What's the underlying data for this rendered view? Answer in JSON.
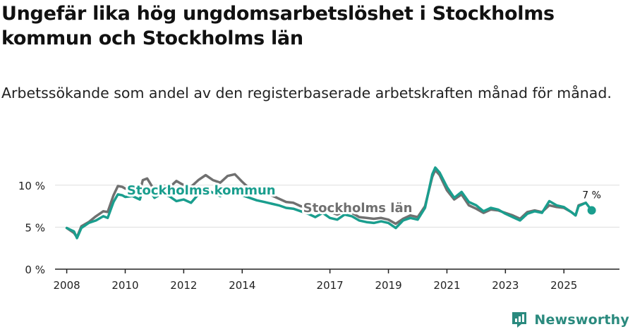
{
  "title": "Ungefär lika hög ungdomsarbetslöshet i Stockholms kommun och Stockholms län",
  "subtitle": "Arbetssökande som andel av den registerbaserade arbetskraften månad för månad.",
  "brand": "Newsworthy",
  "colors": {
    "kommun": "#1a9e8e",
    "lan": "#707070",
    "axis": "#222222",
    "grid": "#dddddd",
    "brand": "#2a8a7e"
  },
  "chart_data": {
    "type": "line",
    "title": "Ungefär lika hög ungdomsarbetslöshet i Stockholms kommun och Stockholms län",
    "xlabel": "",
    "ylabel": "",
    "ylim": [
      0,
      12.5
    ],
    "xlim": [
      2007.6,
      2026.9
    ],
    "yticks": [
      0,
      5,
      10
    ],
    "ytick_labels": [
      "0 %",
      "5 %",
      "10 %"
    ],
    "xticks": [
      2008,
      2010,
      2012,
      2014,
      2017,
      2019,
      2021,
      2023,
      2025
    ],
    "xtick_labels": [
      "2008",
      "2010",
      "2012",
      "2014",
      "2017",
      "2019",
      "2021",
      "2023",
      "2025"
    ],
    "grid": true,
    "end_label": "7 %",
    "series": [
      {
        "name": "Stockholms län",
        "x": [
          2008.0,
          2008.25,
          2008.35,
          2008.5,
          2008.75,
          2009.0,
          2009.25,
          2009.4,
          2009.6,
          2009.75,
          2009.9,
          2010.0,
          2010.25,
          2010.5,
          2010.6,
          2010.75,
          2011.0,
          2011.25,
          2011.5,
          2011.75,
          2012.0,
          2012.25,
          2012.5,
          2012.75,
          2013.0,
          2013.25,
          2013.5,
          2013.75,
          2014.0,
          2014.25,
          2014.5,
          2014.75,
          2015.0,
          2015.25,
          2015.5,
          2015.75,
          2016.0,
          2016.25,
          2016.5,
          2016.75,
          2017.0,
          2017.25,
          2017.5,
          2017.75,
          2018.0,
          2018.25,
          2018.5,
          2018.75,
          2019.0,
          2019.25,
          2019.5,
          2019.75,
          2020.0,
          2020.25,
          2020.5,
          2020.6,
          2020.75,
          2021.0,
          2021.25,
          2021.5,
          2021.75,
          2022.0,
          2022.25,
          2022.5,
          2022.75,
          2023.0,
          2023.25,
          2023.5,
          2023.75,
          2024.0,
          2024.25,
          2024.5,
          2024.75,
          2025.0,
          2025.25,
          2025.4,
          2025.5,
          2025.75
        ],
        "values": [
          4.9,
          4.3,
          3.8,
          5.1,
          5.6,
          6.3,
          6.9,
          6.8,
          8.8,
          9.9,
          9.8,
          9.6,
          9.7,
          9.2,
          10.6,
          10.8,
          9.4,
          10.0,
          9.7,
          10.5,
          10.0,
          9.8,
          10.6,
          11.2,
          10.6,
          10.3,
          11.1,
          11.3,
          10.4,
          9.6,
          9.4,
          9.0,
          8.8,
          8.4,
          8.0,
          7.9,
          7.5,
          7.4,
          7.0,
          7.3,
          6.8,
          6.5,
          6.9,
          6.7,
          6.2,
          6.1,
          6.0,
          6.1,
          5.9,
          5.4,
          6.0,
          6.4,
          6.2,
          7.5,
          11.0,
          11.8,
          11.2,
          9.4,
          8.3,
          8.9,
          7.6,
          7.2,
          6.7,
          7.1,
          7.0,
          6.7,
          6.4,
          6.0,
          6.8,
          7.0,
          6.8,
          7.6,
          7.4,
          7.3,
          6.8,
          6.4,
          7.6,
          7.9
        ]
      },
      {
        "name": "Stockholms kommun",
        "x": [
          2008.0,
          2008.25,
          2008.35,
          2008.5,
          2008.75,
          2009.0,
          2009.25,
          2009.4,
          2009.6,
          2009.75,
          2009.9,
          2010.0,
          2010.25,
          2010.5,
          2010.6,
          2010.75,
          2011.0,
          2011.25,
          2011.5,
          2011.75,
          2012.0,
          2012.25,
          2012.5,
          2012.75,
          2013.0,
          2013.25,
          2013.5,
          2013.75,
          2014.0,
          2014.25,
          2014.5,
          2014.75,
          2015.0,
          2015.25,
          2015.5,
          2015.75,
          2016.0,
          2016.25,
          2016.5,
          2016.75,
          2017.0,
          2017.25,
          2017.5,
          2017.75,
          2018.0,
          2018.25,
          2018.5,
          2018.75,
          2019.0,
          2019.25,
          2019.5,
          2019.75,
          2020.0,
          2020.25,
          2020.5,
          2020.6,
          2020.75,
          2021.0,
          2021.25,
          2021.5,
          2021.75,
          2022.0,
          2022.25,
          2022.5,
          2022.75,
          2023.0,
          2023.25,
          2023.5,
          2023.75,
          2024.0,
          2024.25,
          2024.5,
          2024.75,
          2025.0,
          2025.25,
          2025.4,
          2025.5,
          2025.75,
          2025.95
        ],
        "values": [
          4.9,
          4.5,
          3.7,
          4.9,
          5.5,
          5.8,
          6.3,
          6.1,
          8.0,
          8.9,
          8.8,
          8.6,
          8.7,
          8.3,
          9.5,
          9.8,
          8.5,
          9.0,
          8.7,
          8.1,
          8.3,
          7.9,
          8.9,
          9.5,
          9.1,
          8.7,
          9.5,
          9.7,
          8.8,
          8.5,
          8.2,
          8.0,
          7.8,
          7.6,
          7.3,
          7.2,
          6.9,
          6.6,
          6.2,
          6.7,
          6.1,
          5.9,
          6.5,
          6.3,
          5.8,
          5.6,
          5.5,
          5.7,
          5.5,
          4.9,
          5.8,
          6.1,
          5.9,
          7.3,
          11.3,
          12.1,
          11.5,
          9.8,
          8.5,
          9.2,
          8.0,
          7.6,
          6.9,
          7.3,
          7.1,
          6.6,
          6.2,
          5.8,
          6.6,
          6.9,
          6.7,
          8.1,
          7.6,
          7.4,
          6.8,
          6.4,
          7.5,
          7.9,
          7.0
        ]
      }
    ],
    "annotations": [
      {
        "text": "Stockholms kommun",
        "x": 2012.6,
        "y": 8.9,
        "series": "Stockholms kommun"
      },
      {
        "text": "Stockholms län",
        "x": 2017.95,
        "y": 6.8,
        "series": "Stockholms län"
      }
    ]
  }
}
